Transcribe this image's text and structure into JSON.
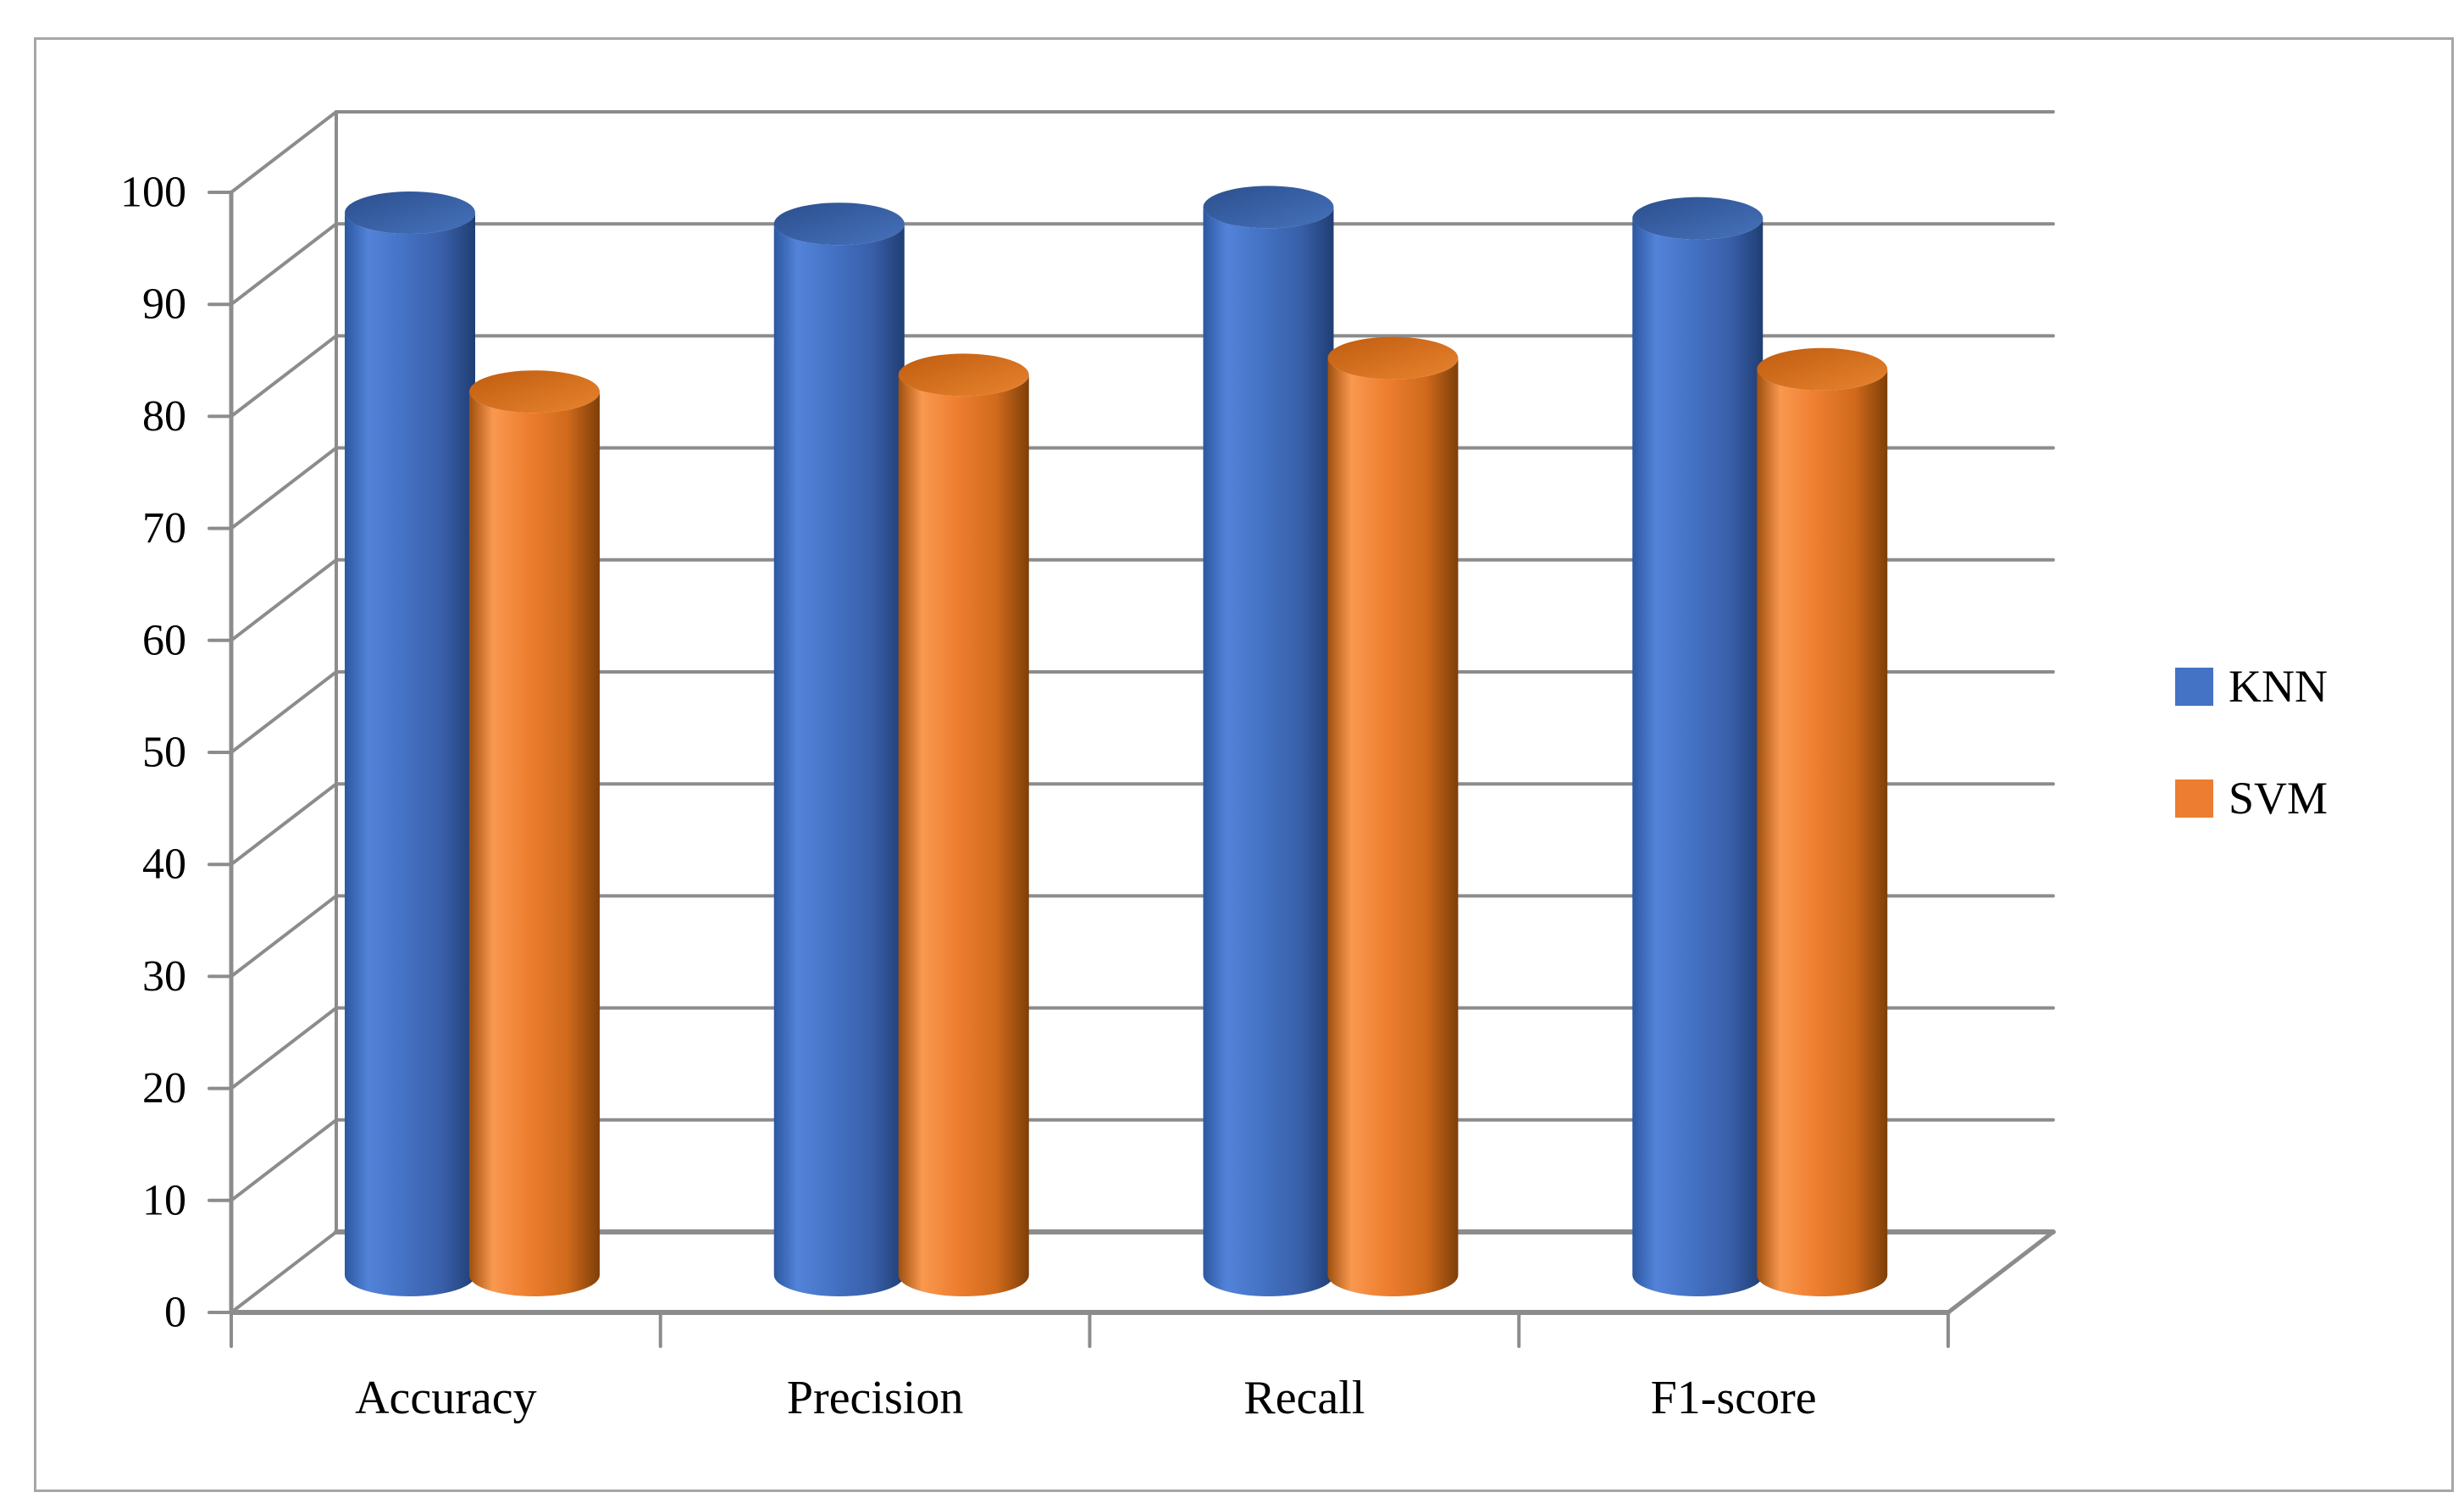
{
  "figure": {
    "kind": "3D clustered cylinder bar chart",
    "background": "#ffffff",
    "frame_color": "#a6a6a6"
  },
  "chart_data": {
    "type": "bar",
    "subtype": "3d-cylinder",
    "title": "",
    "xlabel": "",
    "ylabel": "",
    "categories": [
      "Accuracy",
      "Precision",
      "Recall",
      "F1-score"
    ],
    "series": [
      {
        "name": "KNN",
        "color": "#4472C4",
        "values": [
          95,
          94,
          95.5,
          94.5
        ]
      },
      {
        "name": "SVM",
        "color": "#ED7D31",
        "values": [
          79,
          80.5,
          82,
          81
        ]
      }
    ],
    "ylim": [
      0,
      100
    ],
    "ytick_step": 10,
    "ytick_labels": [
      "0",
      "10",
      "20",
      "30",
      "40",
      "50",
      "60",
      "70",
      "80",
      "90",
      "100"
    ],
    "grid": true,
    "gridline_color": "#8c8c8c",
    "axis_text_color": "#000000",
    "legend_position": "right-middle"
  },
  "legend": {
    "items": [
      {
        "label": "KNN",
        "color": "#4472C4"
      },
      {
        "label": "SVM",
        "color": "#ED7D31"
      }
    ]
  }
}
